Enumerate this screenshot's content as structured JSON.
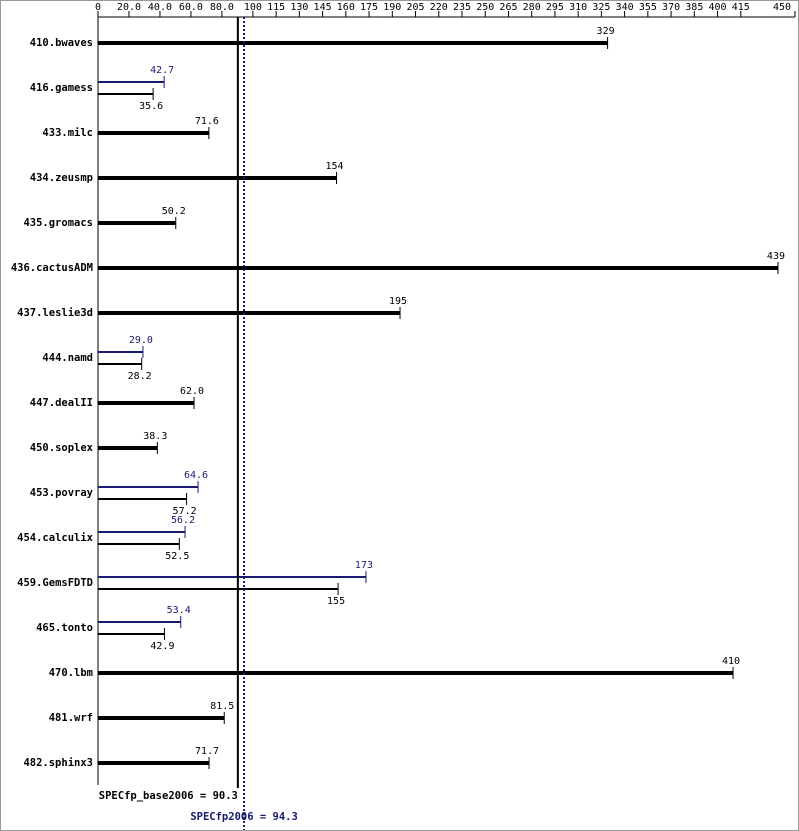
{
  "chart_data": {
    "type": "bar",
    "orientation": "horizontal",
    "categories": [
      "410.bwaves",
      "416.gamess",
      "433.milc",
      "434.zeusmp",
      "435.gromacs",
      "436.cactusADM",
      "437.leslie3d",
      "444.namd",
      "447.dealII",
      "450.soplex",
      "453.povray",
      "454.calculix",
      "459.GemsFDTD",
      "465.tonto",
      "470.lbm",
      "481.wrf",
      "482.sphinx3"
    ],
    "series": [
      {
        "color": "#000000",
        "values": [
          329,
          35.6,
          71.6,
          154,
          50.2,
          439,
          195,
          28.2,
          62.0,
          38.3,
          57.2,
          52.5,
          155,
          42.9,
          410,
          81.5,
          71.7
        ],
        "value_labels": [
          "329",
          "35.6",
          "71.6",
          "154",
          "50.2",
          "439",
          "195",
          "28.2",
          "62.0",
          "38.3",
          "57.2",
          "52.5",
          "155",
          "42.9",
          "410",
          "81.5",
          "71.7"
        ]
      },
      {
        "color": "#191970",
        "values": [
          null,
          42.7,
          null,
          null,
          null,
          null,
          null,
          29.0,
          null,
          null,
          64.6,
          56.2,
          173,
          53.4,
          null,
          null,
          null
        ],
        "value_labels": [
          null,
          "42.7",
          null,
          null,
          null,
          null,
          null,
          "29.0",
          null,
          null,
          "64.6",
          "56.2",
          "173",
          "53.4",
          null,
          null,
          null
        ]
      }
    ],
    "xlim": [
      0,
      450
    ],
    "xticks": [
      0,
      {
        "value": 20,
        "label": "20.0"
      },
      {
        "value": 40,
        "label": "40.0"
      },
      {
        "value": 60,
        "label": "60.0"
      },
      {
        "value": 80,
        "label": "80.0"
      },
      100,
      115,
      130,
      145,
      160,
      175,
      190,
      205,
      220,
      235,
      250,
      265,
      280,
      295,
      310,
      325,
      340,
      355,
      370,
      385,
      400,
      415,
      450
    ],
    "reference_lines": [
      {
        "value": 90.3,
        "label": "SPECfp_base2006 = 90.3",
        "color": "#000000",
        "style": "solid"
      },
      {
        "value": 94.3,
        "label": "SPECfp2006 = 94.3",
        "color": "#191970",
        "style": "dotted"
      }
    ]
  }
}
